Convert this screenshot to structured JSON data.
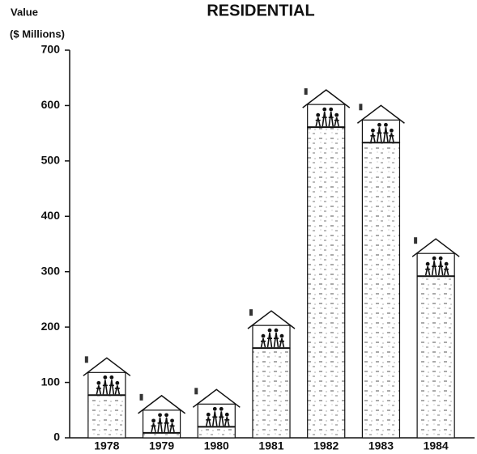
{
  "chart_data": {
    "type": "bar",
    "title": "RESIDENTIAL",
    "ylabel": [
      "Value",
      "($ Millions)"
    ],
    "categories": [
      "1978",
      "1979",
      "1980",
      "1981",
      "1982",
      "1983",
      "1984"
    ],
    "values": [
      77,
      9,
      20,
      162,
      561,
      533,
      292
    ],
    "color": "#ffffff",
    "ylim": [
      0,
      700
    ],
    "yticks": [
      0,
      100,
      200,
      300,
      400,
      500,
      600,
      700
    ],
    "grid": false
  }
}
